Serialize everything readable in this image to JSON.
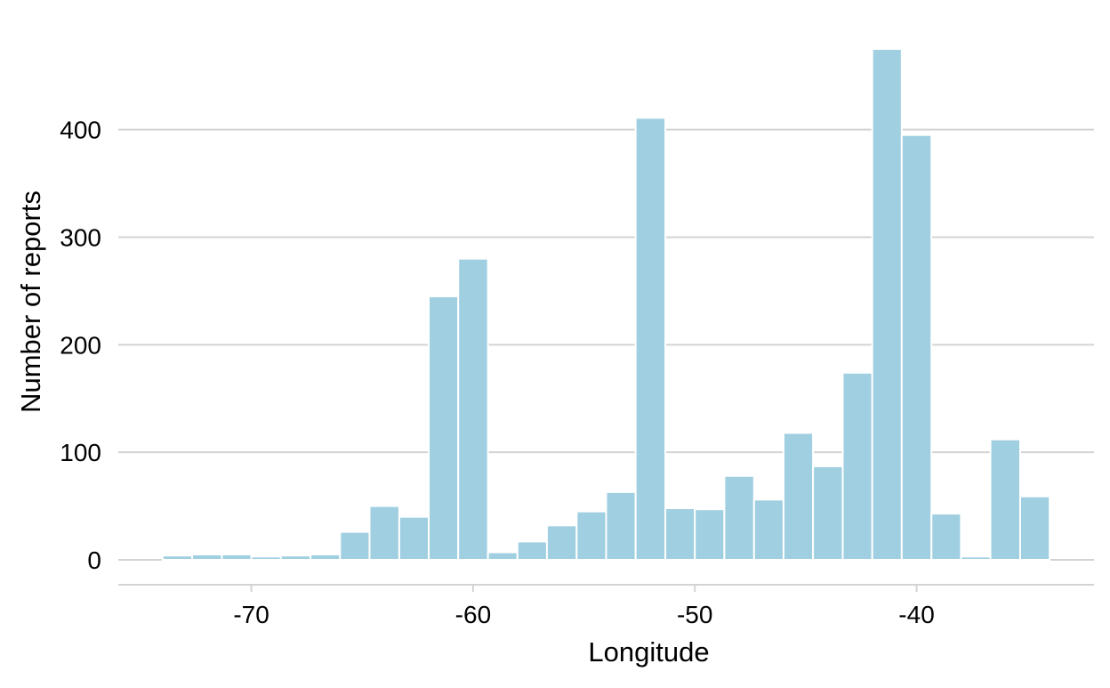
{
  "chart_data": {
    "type": "bar",
    "xlabel": "Longitude",
    "ylabel": "Number of reports",
    "xlim": [
      -76.0,
      -32.0
    ],
    "ylim": [
      0,
      480
    ],
    "x_ticks": [
      -70,
      -60,
      -50,
      -40
    ],
    "x_tick_labels": [
      "-70",
      "-60",
      "-50",
      "-40"
    ],
    "y_ticks": [
      0,
      100,
      200,
      300,
      400
    ],
    "y_tick_labels": [
      "0",
      "100",
      "200",
      "300",
      "400"
    ],
    "grid": "horizontal",
    "bin_width": 1.33,
    "bins": [
      {
        "start": -74.0,
        "end": -72.67,
        "count": 4
      },
      {
        "start": -72.67,
        "end": -71.33,
        "count": 5
      },
      {
        "start": -71.33,
        "end": -70.0,
        "count": 5
      },
      {
        "start": -70.0,
        "end": -68.67,
        "count": 3
      },
      {
        "start": -68.67,
        "end": -67.33,
        "count": 4
      },
      {
        "start": -67.33,
        "end": -66.0,
        "count": 5
      },
      {
        "start": -66.0,
        "end": -64.67,
        "count": 26
      },
      {
        "start": -64.67,
        "end": -63.33,
        "count": 50
      },
      {
        "start": -63.33,
        "end": -62.0,
        "count": 40
      },
      {
        "start": -62.0,
        "end": -60.67,
        "count": 245
      },
      {
        "start": -60.67,
        "end": -59.33,
        "count": 280
      },
      {
        "start": -59.33,
        "end": -58.0,
        "count": 7
      },
      {
        "start": -58.0,
        "end": -56.67,
        "count": 17
      },
      {
        "start": -56.67,
        "end": -55.33,
        "count": 32
      },
      {
        "start": -55.33,
        "end": -54.0,
        "count": 45
      },
      {
        "start": -54.0,
        "end": -52.67,
        "count": 63
      },
      {
        "start": -52.67,
        "end": -51.33,
        "count": 411
      },
      {
        "start": -51.33,
        "end": -50.0,
        "count": 48
      },
      {
        "start": -50.0,
        "end": -48.67,
        "count": 47
      },
      {
        "start": -48.67,
        "end": -47.33,
        "count": 78
      },
      {
        "start": -47.33,
        "end": -46.0,
        "count": 56
      },
      {
        "start": -46.0,
        "end": -44.67,
        "count": 118
      },
      {
        "start": -44.67,
        "end": -43.33,
        "count": 87
      },
      {
        "start": -43.33,
        "end": -42.0,
        "count": 174
      },
      {
        "start": -42.0,
        "end": -40.67,
        "count": 475
      },
      {
        "start": -40.67,
        "end": -39.33,
        "count": 395
      },
      {
        "start": -39.33,
        "end": -38.0,
        "count": 43
      },
      {
        "start": -38.0,
        "end": -36.67,
        "count": 3
      },
      {
        "start": -36.67,
        "end": -35.33,
        "count": 112
      },
      {
        "start": -35.33,
        "end": -34.0,
        "count": 59
      }
    ],
    "colors": {
      "bar_fill": "#9fcfe0",
      "bar_edge": "#ffffff",
      "grid": "#d3d3d3",
      "axis_line": "#d3d3d3",
      "text": "#000000",
      "background": "#ffffff"
    }
  }
}
